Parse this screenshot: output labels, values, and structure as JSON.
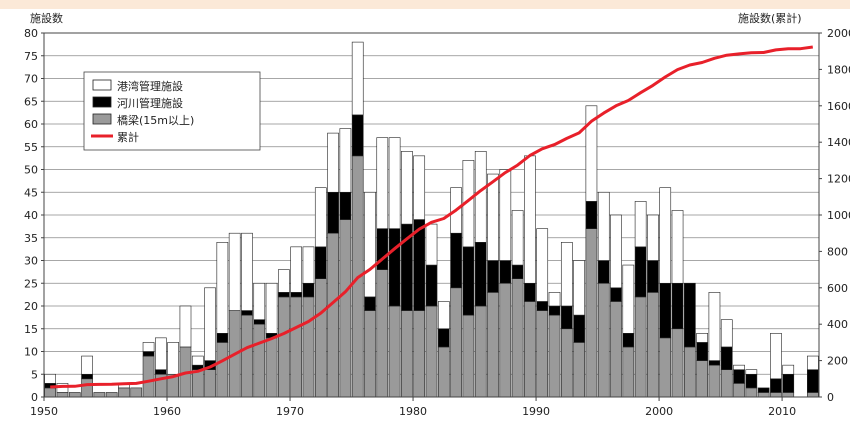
{
  "chart_data": {
    "type": "bar",
    "stacked": true,
    "ylabel_left": "施設数",
    "ylabel_right": "施設数(累計)",
    "xlim": [
      1950,
      2012
    ],
    "ylim_left": [
      0,
      80
    ],
    "ylim_right": [
      0,
      2000
    ],
    "x_ticks": [
      "1950",
      "1960",
      "1970",
      "1980",
      "1990",
      "2000",
      "2010"
    ],
    "y_ticks_left": [
      "0",
      "5",
      "10",
      "15",
      "20",
      "25",
      "30",
      "35",
      "40",
      "45",
      "50",
      "55",
      "60",
      "65",
      "70",
      "75",
      "80"
    ],
    "y_ticks_right": [
      "0",
      "200",
      "400",
      "600",
      "800",
      "1000",
      "1200",
      "1400",
      "1600",
      "1800",
      "2000"
    ],
    "grid": true,
    "legend_position": "top-left",
    "years": [
      1950,
      1951,
      1952,
      1953,
      1954,
      1955,
      1956,
      1957,
      1958,
      1959,
      1960,
      1961,
      1962,
      1963,
      1964,
      1965,
      1966,
      1967,
      1968,
      1969,
      1970,
      1971,
      1972,
      1973,
      1974,
      1975,
      1976,
      1977,
      1978,
      1979,
      1980,
      1981,
      1982,
      1983,
      1984,
      1985,
      1986,
      1987,
      1988,
      1989,
      1990,
      1991,
      1992,
      1993,
      1994,
      1995,
      1996,
      1997,
      1998,
      1999,
      2000,
      2001,
      2002,
      2003,
      2004,
      2005,
      2006,
      2007,
      2008,
      2009,
      2010,
      2011,
      2012
    ],
    "series": [
      {
        "name": "橋梁(15m以上)",
        "color": "#9a9a9a",
        "values": [
          2,
          1,
          1,
          4,
          1,
          1,
          2,
          2,
          9,
          5,
          5,
          11,
          6,
          6,
          12,
          19,
          18,
          16,
          13,
          22,
          22,
          22,
          26,
          36,
          39,
          53,
          19,
          28,
          20,
          19,
          19,
          20,
          11,
          24,
          18,
          20,
          23,
          25,
          26,
          21,
          19,
          18,
          15,
          12,
          37,
          25,
          21,
          11,
          22,
          23,
          13,
          15,
          11,
          8,
          7,
          6,
          3,
          2,
          1,
          1,
          1,
          0,
          1
        ]
      },
      {
        "name": "河川管理施設",
        "color": "#000000",
        "values": [
          1,
          0,
          0,
          1,
          0,
          0,
          0,
          0,
          1,
          1,
          0,
          0,
          1,
          2,
          2,
          0,
          1,
          1,
          1,
          1,
          1,
          3,
          7,
          9,
          6,
          9,
          3,
          9,
          17,
          19,
          20,
          9,
          4,
          12,
          15,
          14,
          7,
          5,
          3,
          4,
          2,
          2,
          5,
          6,
          6,
          5,
          3,
          3,
          11,
          7,
          12,
          10,
          14,
          4,
          1,
          5,
          3,
          3,
          1,
          3,
          4,
          0,
          5
        ]
      },
      {
        "name": "港湾管理施設",
        "color": "#ffffff",
        "values": [
          2,
          2,
          0,
          4,
          0,
          0,
          1,
          0,
          2,
          7,
          7,
          9,
          2,
          16,
          20,
          17,
          17,
          8,
          11,
          5,
          10,
          8,
          13,
          13,
          14,
          16,
          23,
          20,
          20,
          16,
          14,
          9,
          6,
          10,
          19,
          20,
          19,
          20,
          12,
          28,
          16,
          3,
          14,
          12,
          21,
          15,
          16,
          15,
          10,
          10,
          21,
          16,
          0,
          2,
          15,
          6,
          1,
          1,
          0,
          10,
          2,
          0,
          3
        ]
      }
    ],
    "cumulative": {
      "name": "累計",
      "color": "#e8202a",
      "axis": "right",
      "values": [
        55,
        58,
        59,
        68,
        69,
        70,
        73,
        75,
        87,
        100,
        112,
        132,
        141,
        165,
        199,
        235,
        271,
        296,
        321,
        349,
        382,
        415,
        461,
        519,
        578,
        656,
        701,
        758,
        815,
        869,
        922,
        960,
        981,
        1027,
        1080,
        1134,
        1183,
        1233,
        1274,
        1327,
        1364,
        1387,
        1421,
        1451,
        1515,
        1560,
        1600,
        1629,
        1672,
        1712,
        1758,
        1799,
        1824,
        1838,
        1861,
        1878,
        1885,
        1891,
        1893,
        1907,
        1914,
        1914,
        1923
      ]
    }
  },
  "legend": {
    "items": [
      {
        "label": "港湾管理施設",
        "swatch": "#ffffff"
      },
      {
        "label": "河川管理施設",
        "swatch": "#000000"
      },
      {
        "label": "橋梁(15m以上)",
        "swatch": "#9a9a9a"
      },
      {
        "label": "累計",
        "swatch": "#e8202a",
        "kind": "line"
      }
    ]
  }
}
